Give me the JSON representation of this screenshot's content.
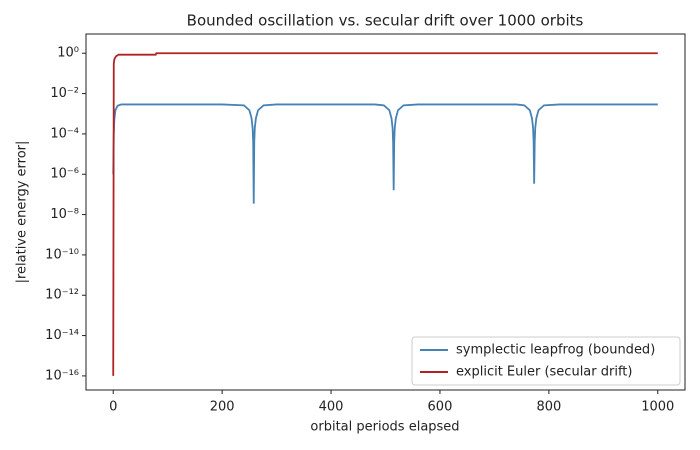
{
  "chart_data": {
    "type": "line",
    "title": "Bounded oscillation vs. secular drift over 1000 orbits",
    "xlabel": "orbital periods elapsed",
    "ylabel": "|relative energy error|",
    "xlim": [
      -50,
      1050
    ],
    "xticks": [
      0,
      200,
      400,
      600,
      800,
      1000
    ],
    "ylim": [
      2e-17,
      9
    ],
    "log_y": true,
    "yticks": [
      {
        "value": 1,
        "label": "10⁰"
      },
      {
        "value": 0.01,
        "label": "10⁻²"
      },
      {
        "value": 0.0001,
        "label": "10⁻⁴"
      },
      {
        "value": 1e-06,
        "label": "10⁻⁶"
      },
      {
        "value": 1e-08,
        "label": "10⁻⁸"
      },
      {
        "value": 1e-10,
        "label": "10⁻¹⁰"
      },
      {
        "value": 1e-12,
        "label": "10⁻¹²"
      },
      {
        "value": 1e-14,
        "label": "10⁻¹⁴"
      },
      {
        "value": 1e-16,
        "label": "10⁻¹⁶"
      }
    ],
    "legend": "lower right",
    "series": [
      {
        "name": "symplectic leapfrog (bounded)",
        "color": "#4682b4",
        "x": [
          0,
          1,
          2,
          4,
          8,
          15,
          100,
          200,
          240,
          250,
          254,
          256,
          257,
          258,
          259,
          260,
          262,
          266,
          276,
          300,
          480,
          497,
          507,
          511,
          513,
          514,
          515,
          516,
          517,
          519,
          523,
          533,
          560,
          740,
          755,
          765,
          769,
          771,
          772,
          773,
          774,
          775,
          777,
          781,
          791,
          820,
          1000
        ],
        "values": [
          1e-06,
          0.0001,
          0.0005,
          0.0015,
          0.0025,
          0.0029,
          0.0029,
          0.0029,
          0.0026,
          0.0015,
          0.0006,
          0.0002,
          4e-05,
          3.5e-08,
          4e-05,
          0.0002,
          0.0006,
          0.0015,
          0.0026,
          0.0029,
          0.0029,
          0.0026,
          0.0015,
          0.0006,
          0.0002,
          4e-05,
          1.6e-07,
          4e-05,
          0.0002,
          0.0006,
          0.0015,
          0.0026,
          0.0029,
          0.0029,
          0.0026,
          0.0015,
          0.0006,
          0.0002,
          4e-05,
          3.4e-07,
          4e-05,
          0.0002,
          0.0006,
          0.0015,
          0.0026,
          0.0029,
          0.0029
        ]
      },
      {
        "name": "explicit Euler (secular drift)",
        "color": "#b22222",
        "x": [
          0,
          1,
          2,
          5,
          10,
          78,
          79,
          1000
        ],
        "values": [
          1e-16,
          0.3,
          0.5,
          0.7,
          0.85,
          0.85,
          1.0,
          1.0
        ]
      }
    ]
  }
}
